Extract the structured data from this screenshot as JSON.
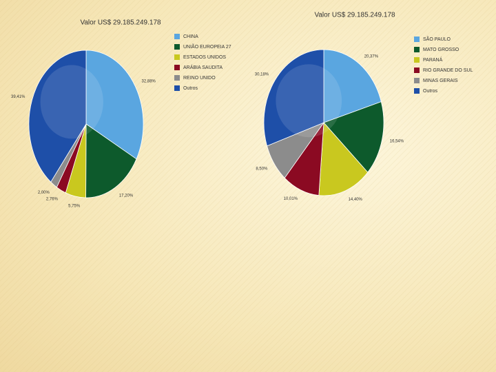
{
  "chart_data": [
    {
      "type": "pie",
      "title": "Valor US$ 29.185.249.178",
      "categories": [
        "CHINA",
        "UNIÃO EUROPEIA 27",
        "ESTADOS UNIDOS",
        "ARÁBIA SAUDITA",
        "REINO UNIDO",
        "Outros"
      ],
      "values": [
        32.88,
        17.2,
        5.75,
        2.76,
        2.0,
        39.41
      ],
      "value_labels": [
        "32,88%",
        "17,20%",
        "5,75%",
        "2,76%",
        "2,00%",
        "39,41%"
      ],
      "colors": [
        "#5aa6e0",
        "#0d5a2c",
        "#c9c81f",
        "#8b0a22",
        "#8c8c8c",
        "#1e4fa8"
      ]
    },
    {
      "type": "pie",
      "title": "Valor US$ 29.185.249.178",
      "categories": [
        "SÃO PAULO",
        "MATO GROSSO",
        "PARANÁ",
        "RIO GRANDE DO SUL",
        "MINAS GERAIS",
        "Outros"
      ],
      "values": [
        20.37,
        16.54,
        14.4,
        10.01,
        8.5,
        30.18
      ],
      "value_labels": [
        "20,37%",
        "16,54%",
        "14,40%",
        "10,01%",
        "8,50%",
        "30,18%"
      ],
      "colors": [
        "#5aa6e0",
        "#0d5a2c",
        "#c9c81f",
        "#8b0a22",
        "#8c8c8c",
        "#1e4fa8"
      ]
    }
  ]
}
